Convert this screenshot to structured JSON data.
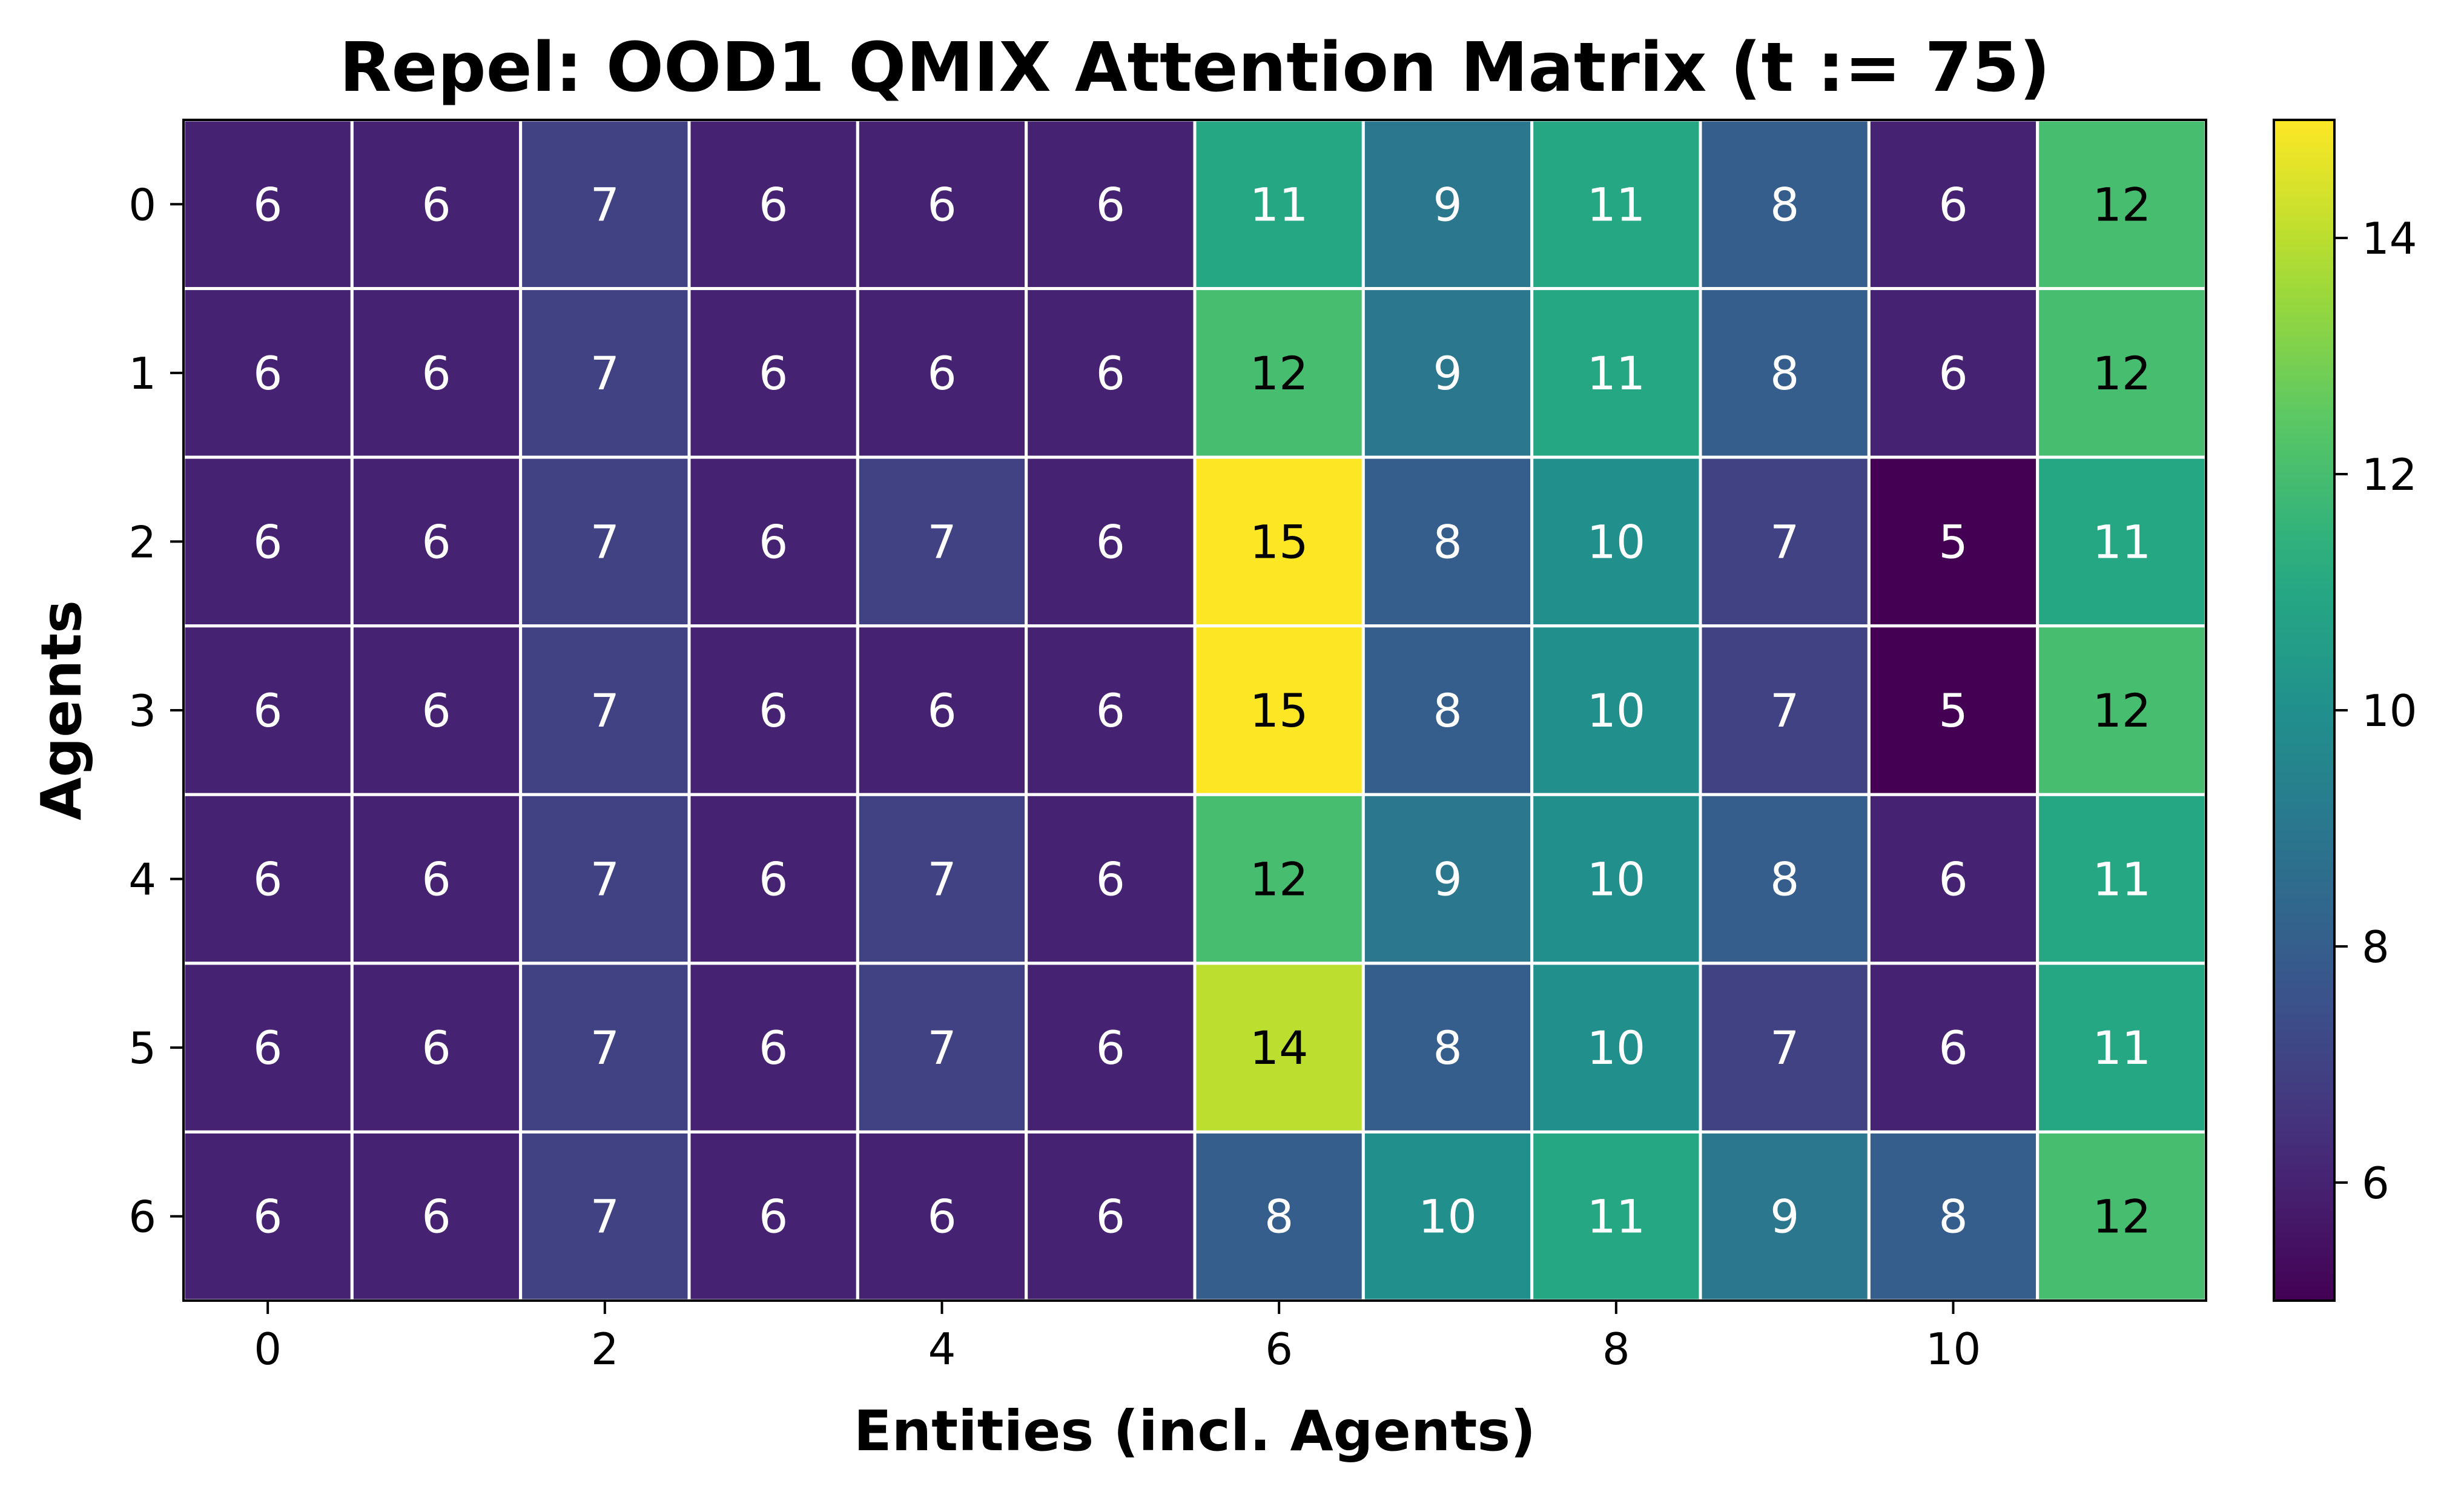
{
  "chart_data": {
    "type": "heatmap",
    "title": "Repel: OOD1 QMIX Attention Matrix (t := 75)",
    "xlabel": "Entities (incl. Agents)",
    "ylabel": "Agents",
    "x_categories": [
      0,
      1,
      2,
      3,
      4,
      5,
      6,
      7,
      8,
      9,
      10,
      11
    ],
    "y_categories": [
      0,
      1,
      2,
      3,
      4,
      5,
      6
    ],
    "x_tick_labels": [
      "0",
      "2",
      "4",
      "6",
      "8",
      "10"
    ],
    "x_tick_values": [
      0,
      2,
      4,
      6,
      8,
      10
    ],
    "y_tick_labels": [
      "0",
      "1",
      "2",
      "3",
      "4",
      "5",
      "6"
    ],
    "values": [
      [
        6,
        6,
        7,
        6,
        6,
        6,
        11,
        9,
        11,
        8,
        6,
        12
      ],
      [
        6,
        6,
        7,
        6,
        6,
        6,
        12,
        9,
        11,
        8,
        6,
        12
      ],
      [
        6,
        6,
        7,
        6,
        7,
        6,
        15,
        8,
        10,
        7,
        5,
        11
      ],
      [
        6,
        6,
        7,
        6,
        6,
        6,
        15,
        8,
        10,
        7,
        5,
        12
      ],
      [
        6,
        6,
        7,
        6,
        7,
        6,
        12,
        9,
        10,
        8,
        6,
        11
      ],
      [
        6,
        6,
        7,
        6,
        7,
        6,
        14,
        8,
        10,
        7,
        6,
        11
      ],
      [
        6,
        6,
        7,
        6,
        6,
        6,
        8,
        10,
        11,
        9,
        8,
        12
      ]
    ],
    "colormap": "viridis",
    "colorbar": {
      "range": [
        5,
        15
      ],
      "tick_values": [
        6,
        8,
        10,
        12,
        14
      ],
      "tick_labels": [
        "6",
        "8",
        "10",
        "12",
        "14"
      ]
    },
    "grid": false,
    "legend": "none"
  }
}
